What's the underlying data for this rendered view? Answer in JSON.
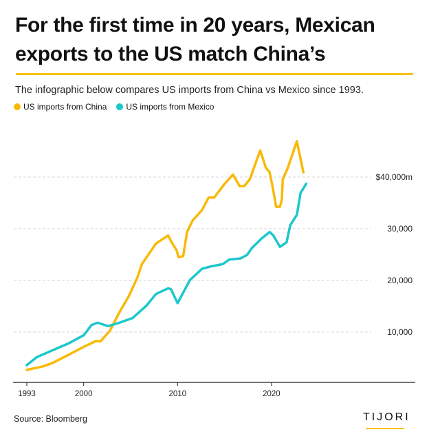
{
  "header": {
    "title": "For the first time in 20 years, Mexican exports to the US match China’s",
    "subtitle": "The infographic below compares US imports from China vs Mexico since 1993."
  },
  "footer": {
    "source": "Source: Bloomberg",
    "logo": "TIJORI"
  },
  "chart_data": {
    "type": "line",
    "title": "",
    "xlabel": "",
    "ylabel": "",
    "xlim": [
      1993,
      2024
    ],
    "ylim": [
      0,
      48000
    ],
    "grid": true,
    "legend_position": "top-left",
    "x_ticks": [
      1993,
      2000,
      2010,
      2020
    ],
    "x_tick_labels": [
      "1993",
      "2000",
      "2010",
      "2020"
    ],
    "y_ticks": [
      10000,
      20000,
      30000,
      40000
    ],
    "y_tick_labels": [
      "10,000",
      "20,000",
      "30,000",
      "$40,000m"
    ],
    "series": [
      {
        "name": "US imports from China",
        "color": "#F9B908",
        "points": [
          [
            1993,
            2700
          ],
          [
            1995.7,
            3370
          ],
          [
            1996.7,
            4040
          ],
          [
            1998.4,
            5600
          ],
          [
            2000,
            7150
          ],
          [
            2001.3,
            8270
          ],
          [
            2001.8,
            8220
          ],
          [
            2002.8,
            10270
          ],
          [
            2003.8,
            13820
          ],
          [
            2004.8,
            16930
          ],
          [
            2005.7,
            20490
          ],
          [
            2006.2,
            23150
          ],
          [
            2007.7,
            27150
          ],
          [
            2009,
            28700
          ],
          [
            2009.3,
            27600
          ],
          [
            2009.9,
            25820
          ],
          [
            2010.1,
            24490
          ],
          [
            2010.6,
            24710
          ],
          [
            2011,
            29370
          ],
          [
            2011.6,
            31600
          ],
          [
            2012.6,
            33600
          ],
          [
            2013.3,
            36040
          ],
          [
            2013.9,
            36040
          ],
          [
            2015,
            38700
          ],
          [
            2015.9,
            40480
          ],
          [
            2016.6,
            38260
          ],
          [
            2017.1,
            38260
          ],
          [
            2017.7,
            39600
          ],
          [
            2018.4,
            43150
          ],
          [
            2018.8,
            45150
          ],
          [
            2019,
            44050
          ],
          [
            2019.4,
            41820
          ],
          [
            2019.8,
            40920
          ],
          [
            2020.1,
            38260
          ],
          [
            2020.5,
            34260
          ],
          [
            2020.9,
            34260
          ],
          [
            2021.1,
            35590
          ],
          [
            2021.2,
            39600
          ],
          [
            2021.7,
            41600
          ],
          [
            2022.7,
            46930
          ],
          [
            2023.4,
            40920
          ]
        ]
      },
      {
        "name": "US imports from Mexico",
        "color": "#1CC7CB",
        "points": [
          [
            1993,
            3600
          ],
          [
            1995,
            5150
          ],
          [
            1996.7,
            6490
          ],
          [
            1998.4,
            7820
          ],
          [
            2000,
            9380
          ],
          [
            2000.85,
            11380
          ],
          [
            2001.5,
            11820
          ],
          [
            2002.6,
            11150
          ],
          [
            2003.8,
            11820
          ],
          [
            2005.2,
            12710
          ],
          [
            2006.7,
            15150
          ],
          [
            2007.7,
            17370
          ],
          [
            2009,
            18480
          ],
          [
            2009.3,
            18300
          ],
          [
            2010,
            15600
          ],
          [
            2011.3,
            20040
          ],
          [
            2012.6,
            22260
          ],
          [
            2013.5,
            22700
          ],
          [
            2014.8,
            23150
          ],
          [
            2015.5,
            24040
          ],
          [
            2016.7,
            24260
          ],
          [
            2017.4,
            24930
          ],
          [
            2017.9,
            26260
          ],
          [
            2018.9,
            28040
          ],
          [
            2019.8,
            29370
          ],
          [
            2020.2,
            28700
          ],
          [
            2020.9,
            26490
          ],
          [
            2021.6,
            27370
          ],
          [
            2022,
            30700
          ],
          [
            2022.7,
            32700
          ],
          [
            2023.1,
            36930
          ],
          [
            2023.7,
            38710
          ]
        ]
      }
    ]
  }
}
